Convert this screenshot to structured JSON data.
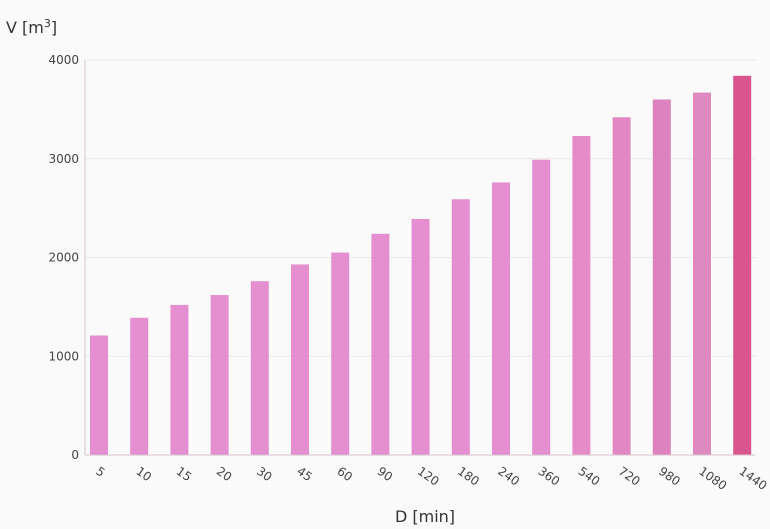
{
  "chart_data": {
    "type": "bar",
    "categories": [
      "5",
      "10",
      "15",
      "20",
      "30",
      "45",
      "60",
      "90",
      "120",
      "180",
      "240",
      "360",
      "540",
      "720",
      "980",
      "1080",
      "1440"
    ],
    "values": [
      1210,
      1390,
      1520,
      1620,
      1760,
      1930,
      2050,
      2240,
      2390,
      2590,
      2760,
      2990,
      3230,
      3420,
      3600,
      3670,
      3840
    ],
    "colors": [
      "#e58fd0",
      "#e58fd0",
      "#e58fd0",
      "#e58fd0",
      "#e58fd0",
      "#e58fd0",
      "#e58fd0",
      "#e58fd0",
      "#e58fd0",
      "#e58fd0",
      "#e58fd0",
      "#e58fd0",
      "#e48bc8",
      "#e287c4",
      "#dd82bf",
      "#de8ac0",
      "#d9558e"
    ],
    "ylabel_main": "V [m",
    "ylabel_sup": "3",
    "ylabel_end": "]",
    "xlabel": "D [min]",
    "ylim": [
      0,
      4000
    ],
    "yticks": [
      0,
      1000,
      2000,
      3000,
      4000
    ],
    "yticks_text": [
      "0",
      "1000",
      "2000",
      "3000",
      "4000"
    ],
    "grid": "horizontal"
  }
}
